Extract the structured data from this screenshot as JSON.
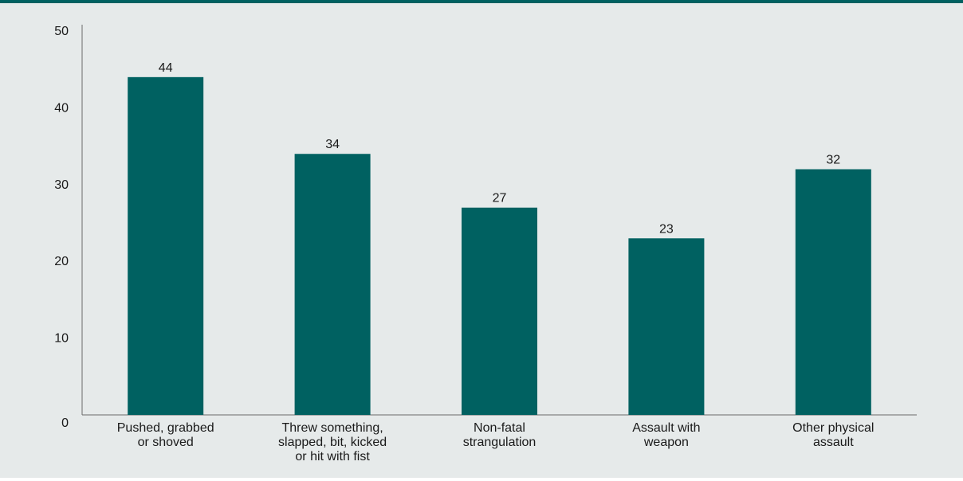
{
  "colors": {
    "bar": "#006161",
    "background": "#e6eaea",
    "top_border": "#006161",
    "axis": "#6b6b6b"
  },
  "chart_data": {
    "type": "bar",
    "title": "",
    "xlabel": "",
    "ylabel": "",
    "ylim": [
      0,
      50
    ],
    "yticks": [
      0,
      10,
      20,
      30,
      40,
      50
    ],
    "grid": false,
    "categories": [
      [
        "Pushed, grabbed",
        "or shoved"
      ],
      [
        "Threw something,",
        "slapped, bit, kicked",
        "or hit with fist"
      ],
      [
        "Non-fatal",
        "strangulation"
      ],
      [
        "Assault with",
        "weapon"
      ],
      [
        "Other physical",
        "assault"
      ]
    ],
    "values": [
      44,
      34,
      27,
      23,
      32
    ]
  }
}
